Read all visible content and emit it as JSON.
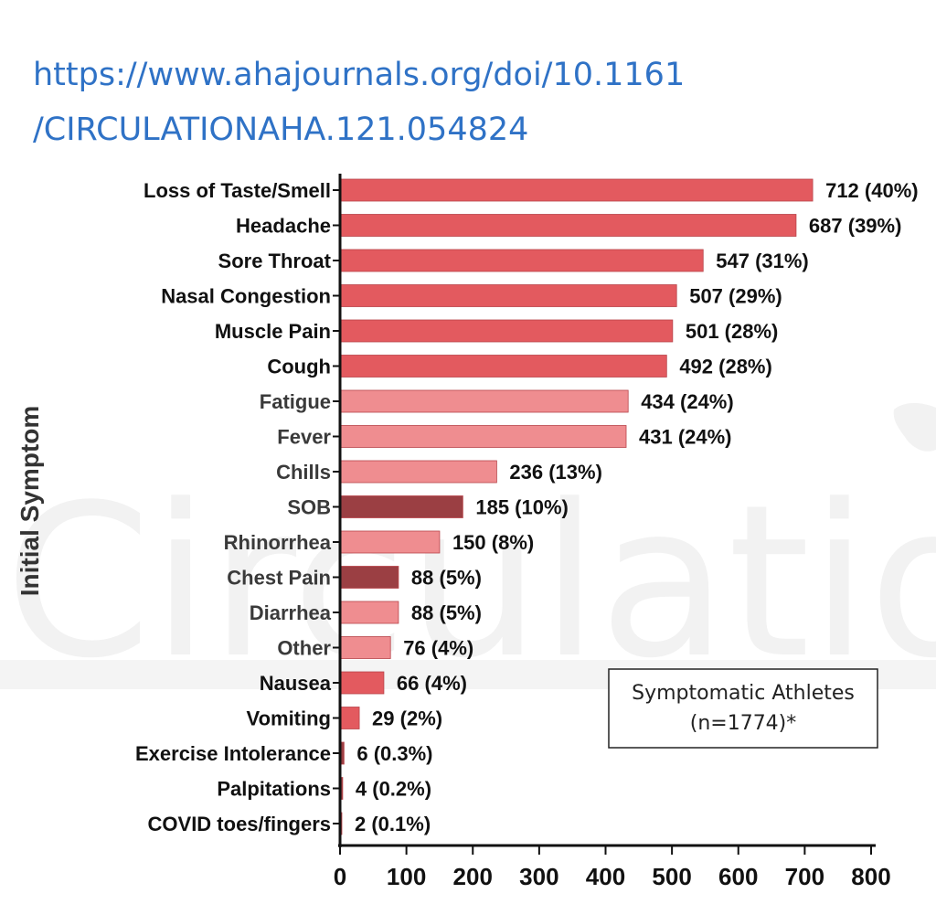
{
  "source_url": {
    "line1": "https://www.ahajournals.org/doi/10.1161",
    "line2": "/CIRCULATIONAHA.121.054824"
  },
  "watermark": {
    "text": "Circulation"
  },
  "colors": {
    "strong": "#e35a5f",
    "light": "#ef8d90",
    "dark": "#9b3f43",
    "label_strong": "#111111",
    "label_light": "#3a3a3a"
  },
  "chart_data": {
    "type": "bar",
    "orientation": "horizontal",
    "title": "",
    "ylabel": "Initial Symptom",
    "xlabel": "",
    "xlim": [
      0,
      800
    ],
    "xticks": [
      0,
      100,
      200,
      300,
      400,
      500,
      600,
      700,
      800
    ],
    "categories": [
      "Loss of Taste/Smell",
      "Headache",
      "Sore Throat",
      "Nasal Congestion",
      "Muscle Pain",
      "Cough",
      "Fatigue",
      "Fever",
      "Chills",
      "SOB",
      "Rhinorrhea",
      "Chest Pain",
      "Diarrhea",
      "Other",
      "Nausea",
      "Vomiting",
      "Exercise Intolerance",
      "Palpitations",
      "COVID toes/fingers"
    ],
    "values": [
      712,
      687,
      547,
      507,
      501,
      492,
      434,
      431,
      236,
      185,
      150,
      88,
      88,
      76,
      66,
      29,
      6,
      4,
      2
    ],
    "labels": [
      "712 (40%)",
      "687 (39%)",
      "547 (31%)",
      "507 (29%)",
      "501 (28%)",
      "492 (28%)",
      "434 (24%)",
      "431 (24%)",
      "236 (13%)",
      "185 (10%)",
      "150 (8%)",
      "88 (5%)",
      "88 (5%)",
      "76 (4%)",
      "66 (4%)",
      "29 (2%)",
      "6 (0.3%)",
      "4 (0.2%)",
      "2 (0.1%)"
    ],
    "bar_colors": [
      "strong",
      "strong",
      "strong",
      "strong",
      "strong",
      "strong",
      "light",
      "light",
      "light",
      "dark",
      "light",
      "dark",
      "light",
      "light",
      "strong",
      "strong",
      "dark",
      "dark",
      "dark"
    ],
    "label_shades": [
      "strong",
      "strong",
      "strong",
      "strong",
      "strong",
      "strong",
      "light",
      "light",
      "light",
      "light",
      "light",
      "light",
      "light",
      "light",
      "strong",
      "strong",
      "strong",
      "strong",
      "strong"
    ],
    "annotation": {
      "line1": "Symptomatic Athletes",
      "line2": "(n=1774)*"
    }
  }
}
